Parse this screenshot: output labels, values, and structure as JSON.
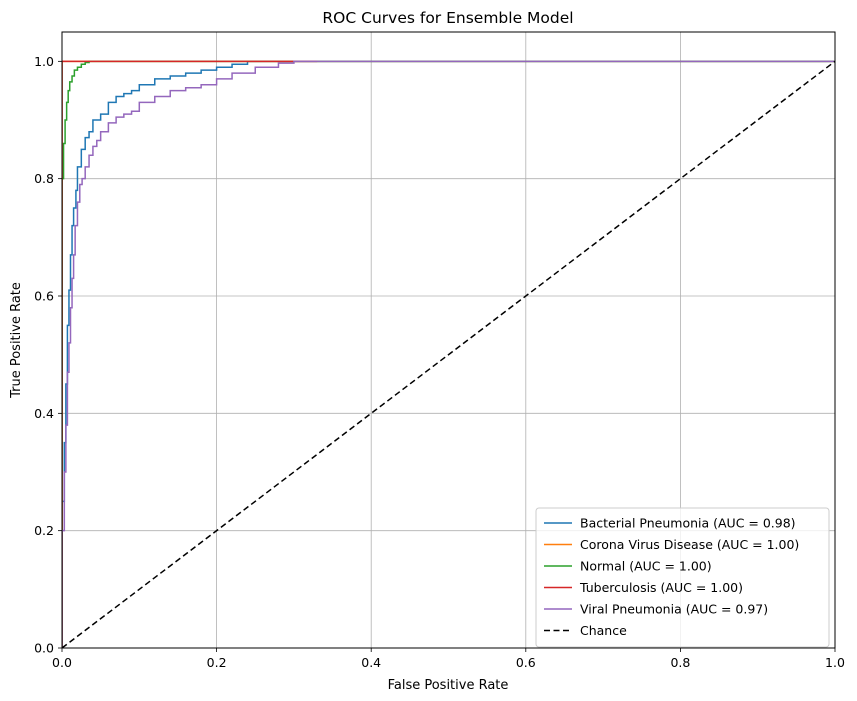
{
  "chart_data": {
    "type": "line",
    "title": "ROC Curves for Ensemble Model",
    "xlabel": "False Positive Rate",
    "ylabel": "True Positive Rate",
    "xlim": [
      0,
      1
    ],
    "ylim": [
      0,
      1.05
    ],
    "xticks": [
      "0.0",
      "0.2",
      "0.4",
      "0.6",
      "0.8",
      "1.0"
    ],
    "yticks": [
      "0.0",
      "0.2",
      "0.4",
      "0.6",
      "0.8",
      "1.0"
    ],
    "grid": true,
    "legend_position": "bottom-right",
    "series": [
      {
        "name": "Bacterial Pneumonia (AUC = 0.98)",
        "color": "#1f77b4",
        "dash": "solid",
        "x": [
          0,
          0,
          0.003,
          0.005,
          0.007,
          0.009,
          0.011,
          0.013,
          0.015,
          0.018,
          0.02,
          0.025,
          0.03,
          0.035,
          0.04,
          0.05,
          0.06,
          0.07,
          0.08,
          0.09,
          0.1,
          0.12,
          0.14,
          0.16,
          0.18,
          0.2,
          0.22,
          0.24,
          0.26,
          0.3,
          0.33,
          1.0
        ],
        "y": [
          0,
          0.14,
          0.25,
          0.35,
          0.45,
          0.55,
          0.61,
          0.67,
          0.72,
          0.75,
          0.78,
          0.82,
          0.85,
          0.87,
          0.88,
          0.9,
          0.91,
          0.93,
          0.94,
          0.945,
          0.95,
          0.96,
          0.97,
          0.975,
          0.98,
          0.985,
          0.99,
          0.995,
          1.0,
          1.0,
          1.0,
          1.0
        ]
      },
      {
        "name": "Corona Virus Disease (AUC = 1.00)",
        "color": "#ff7f0e",
        "dash": "solid",
        "x": [
          0,
          0,
          0.003,
          0.33,
          1.0
        ],
        "y": [
          0,
          0.99,
          1.0,
          1.0,
          1.0
        ]
      },
      {
        "name": "Normal (AUC = 1.00)",
        "color": "#2ca02c",
        "dash": "solid",
        "x": [
          0,
          0,
          0.002,
          0.004,
          0.006,
          0.008,
          0.01,
          0.013,
          0.016,
          0.02,
          0.025,
          0.03,
          0.035,
          0.045,
          0.33,
          1.0
        ],
        "y": [
          0,
          0.66,
          0.8,
          0.86,
          0.9,
          0.93,
          0.95,
          0.965,
          0.975,
          0.985,
          0.99,
          0.995,
          0.998,
          1.0,
          1.0,
          1.0
        ]
      },
      {
        "name": "Tuberculosis (AUC = 1.00)",
        "color": "#d62728",
        "dash": "solid",
        "x": [
          0,
          0,
          0.002,
          0.33
        ],
        "y": [
          0,
          0.985,
          1.0,
          1.0
        ]
      },
      {
        "name": "Viral Pneumonia (AUC = 0.97)",
        "color": "#9467bd",
        "dash": "solid",
        "x": [
          0,
          0,
          0.003,
          0.005,
          0.007,
          0.009,
          0.011,
          0.013,
          0.015,
          0.017,
          0.02,
          0.023,
          0.026,
          0.03,
          0.035,
          0.04,
          0.045,
          0.05,
          0.06,
          0.07,
          0.08,
          0.09,
          0.1,
          0.12,
          0.14,
          0.16,
          0.18,
          0.2,
          0.22,
          0.25,
          0.28,
          0.3,
          0.33,
          1.0
        ],
        "y": [
          0,
          0.13,
          0.2,
          0.3,
          0.38,
          0.47,
          0.52,
          0.58,
          0.63,
          0.67,
          0.72,
          0.76,
          0.79,
          0.8,
          0.82,
          0.84,
          0.855,
          0.865,
          0.88,
          0.895,
          0.905,
          0.91,
          0.915,
          0.93,
          0.94,
          0.95,
          0.955,
          0.96,
          0.97,
          0.98,
          0.99,
          0.997,
          1.0,
          1.0
        ]
      },
      {
        "name": "Chance",
        "color": "#000000",
        "dash": "dashed",
        "x": [
          0,
          1
        ],
        "y": [
          0,
          1
        ]
      }
    ]
  }
}
